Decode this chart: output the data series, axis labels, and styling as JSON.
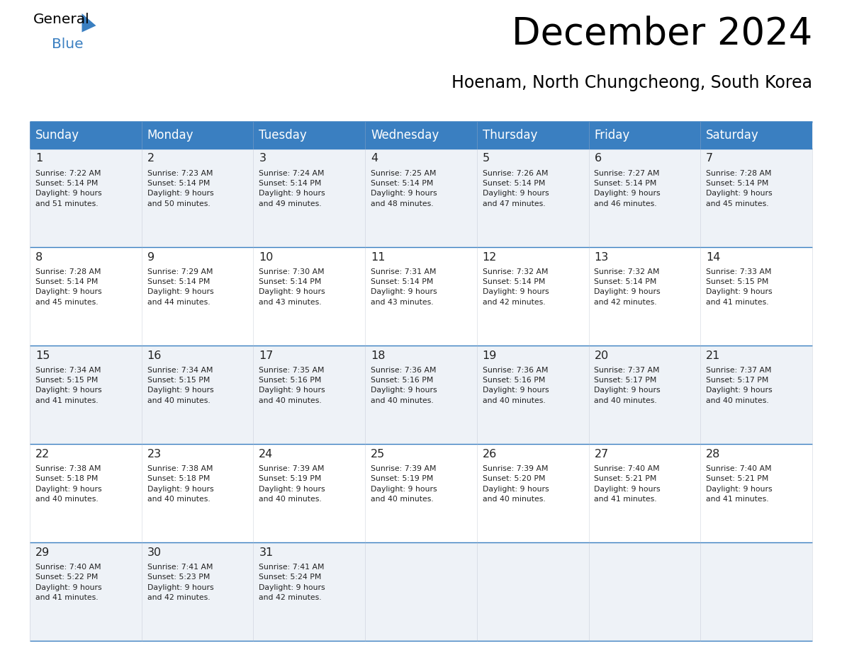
{
  "title": "December 2024",
  "subtitle": "Hoenam, North Chungcheong, South Korea",
  "days_of_week": [
    "Sunday",
    "Monday",
    "Tuesday",
    "Wednesday",
    "Thursday",
    "Friday",
    "Saturday"
  ],
  "header_bg": "#3a7fc1",
  "header_text": "#ffffff",
  "row_bg_light": "#eef2f7",
  "row_bg_white": "#ffffff",
  "border_color": "#3a7fc1",
  "cell_text_color": "#222222",
  "calendar": [
    [
      {
        "day": 1,
        "sunrise": "7:22 AM",
        "sunset": "5:14 PM",
        "daylight_h": "9 hours",
        "daylight_m": "51 minutes."
      },
      {
        "day": 2,
        "sunrise": "7:23 AM",
        "sunset": "5:14 PM",
        "daylight_h": "9 hours",
        "daylight_m": "50 minutes."
      },
      {
        "day": 3,
        "sunrise": "7:24 AM",
        "sunset": "5:14 PM",
        "daylight_h": "9 hours",
        "daylight_m": "49 minutes."
      },
      {
        "day": 4,
        "sunrise": "7:25 AM",
        "sunset": "5:14 PM",
        "daylight_h": "9 hours",
        "daylight_m": "48 minutes."
      },
      {
        "day": 5,
        "sunrise": "7:26 AM",
        "sunset": "5:14 PM",
        "daylight_h": "9 hours",
        "daylight_m": "47 minutes."
      },
      {
        "day": 6,
        "sunrise": "7:27 AM",
        "sunset": "5:14 PM",
        "daylight_h": "9 hours",
        "daylight_m": "46 minutes."
      },
      {
        "day": 7,
        "sunrise": "7:28 AM",
        "sunset": "5:14 PM",
        "daylight_h": "9 hours",
        "daylight_m": "45 minutes."
      }
    ],
    [
      {
        "day": 8,
        "sunrise": "7:28 AM",
        "sunset": "5:14 PM",
        "daylight_h": "9 hours",
        "daylight_m": "45 minutes."
      },
      {
        "day": 9,
        "sunrise": "7:29 AM",
        "sunset": "5:14 PM",
        "daylight_h": "9 hours",
        "daylight_m": "44 minutes."
      },
      {
        "day": 10,
        "sunrise": "7:30 AM",
        "sunset": "5:14 PM",
        "daylight_h": "9 hours",
        "daylight_m": "43 minutes."
      },
      {
        "day": 11,
        "sunrise": "7:31 AM",
        "sunset": "5:14 PM",
        "daylight_h": "9 hours",
        "daylight_m": "43 minutes."
      },
      {
        "day": 12,
        "sunrise": "7:32 AM",
        "sunset": "5:14 PM",
        "daylight_h": "9 hours",
        "daylight_m": "42 minutes."
      },
      {
        "day": 13,
        "sunrise": "7:32 AM",
        "sunset": "5:14 PM",
        "daylight_h": "9 hours",
        "daylight_m": "42 minutes."
      },
      {
        "day": 14,
        "sunrise": "7:33 AM",
        "sunset": "5:15 PM",
        "daylight_h": "9 hours",
        "daylight_m": "41 minutes."
      }
    ],
    [
      {
        "day": 15,
        "sunrise": "7:34 AM",
        "sunset": "5:15 PM",
        "daylight_h": "9 hours",
        "daylight_m": "41 minutes."
      },
      {
        "day": 16,
        "sunrise": "7:34 AM",
        "sunset": "5:15 PM",
        "daylight_h": "9 hours",
        "daylight_m": "40 minutes."
      },
      {
        "day": 17,
        "sunrise": "7:35 AM",
        "sunset": "5:16 PM",
        "daylight_h": "9 hours",
        "daylight_m": "40 minutes."
      },
      {
        "day": 18,
        "sunrise": "7:36 AM",
        "sunset": "5:16 PM",
        "daylight_h": "9 hours",
        "daylight_m": "40 minutes."
      },
      {
        "day": 19,
        "sunrise": "7:36 AM",
        "sunset": "5:16 PM",
        "daylight_h": "9 hours",
        "daylight_m": "40 minutes."
      },
      {
        "day": 20,
        "sunrise": "7:37 AM",
        "sunset": "5:17 PM",
        "daylight_h": "9 hours",
        "daylight_m": "40 minutes."
      },
      {
        "day": 21,
        "sunrise": "7:37 AM",
        "sunset": "5:17 PM",
        "daylight_h": "9 hours",
        "daylight_m": "40 minutes."
      }
    ],
    [
      {
        "day": 22,
        "sunrise": "7:38 AM",
        "sunset": "5:18 PM",
        "daylight_h": "9 hours",
        "daylight_m": "40 minutes."
      },
      {
        "day": 23,
        "sunrise": "7:38 AM",
        "sunset": "5:18 PM",
        "daylight_h": "9 hours",
        "daylight_m": "40 minutes."
      },
      {
        "day": 24,
        "sunrise": "7:39 AM",
        "sunset": "5:19 PM",
        "daylight_h": "9 hours",
        "daylight_m": "40 minutes."
      },
      {
        "day": 25,
        "sunrise": "7:39 AM",
        "sunset": "5:19 PM",
        "daylight_h": "9 hours",
        "daylight_m": "40 minutes."
      },
      {
        "day": 26,
        "sunrise": "7:39 AM",
        "sunset": "5:20 PM",
        "daylight_h": "9 hours",
        "daylight_m": "40 minutes."
      },
      {
        "day": 27,
        "sunrise": "7:40 AM",
        "sunset": "5:21 PM",
        "daylight_h": "9 hours",
        "daylight_m": "41 minutes."
      },
      {
        "day": 28,
        "sunrise": "7:40 AM",
        "sunset": "5:21 PM",
        "daylight_h": "9 hours",
        "daylight_m": "41 minutes."
      }
    ],
    [
      {
        "day": 29,
        "sunrise": "7:40 AM",
        "sunset": "5:22 PM",
        "daylight_h": "9 hours",
        "daylight_m": "41 minutes."
      },
      {
        "day": 30,
        "sunrise": "7:41 AM",
        "sunset": "5:23 PM",
        "daylight_h": "9 hours",
        "daylight_m": "42 minutes."
      },
      {
        "day": 31,
        "sunrise": "7:41 AM",
        "sunset": "5:24 PM",
        "daylight_h": "9 hours",
        "daylight_m": "42 minutes."
      },
      null,
      null,
      null,
      null
    ]
  ],
  "logo_triangle_color": "#3a7fc1"
}
